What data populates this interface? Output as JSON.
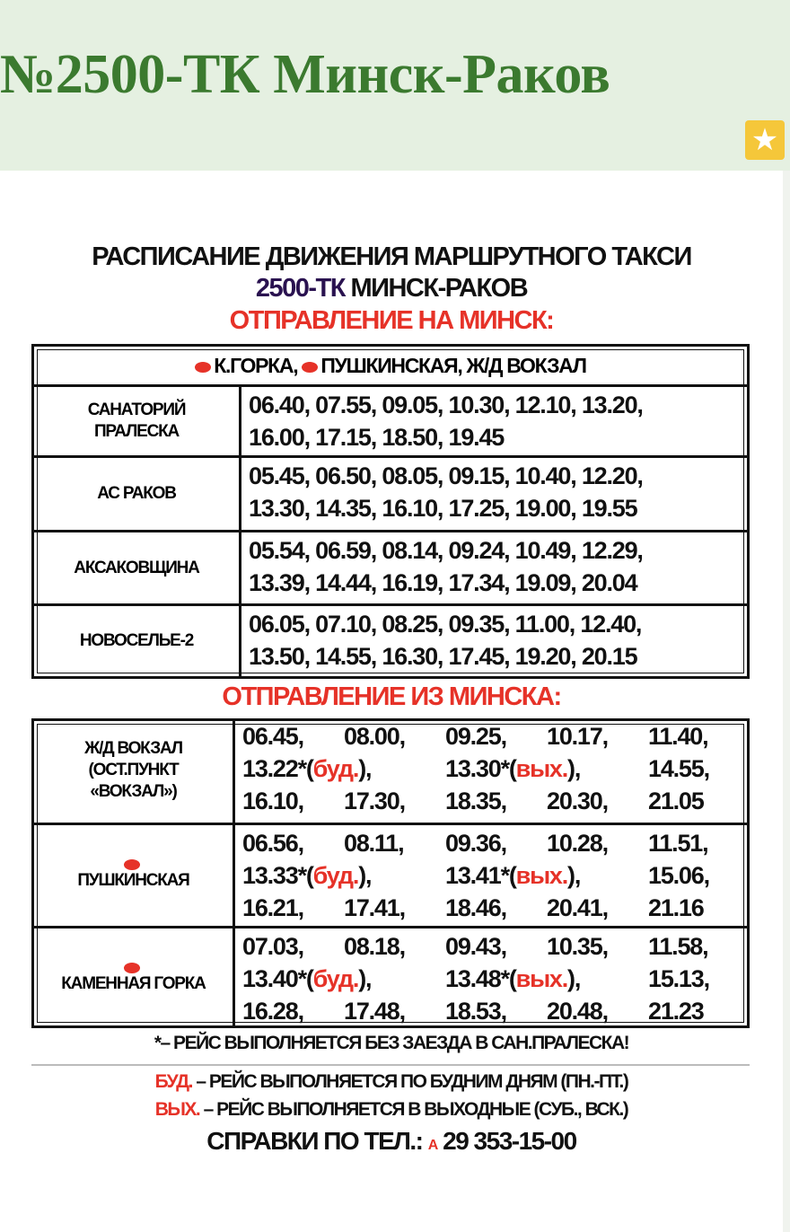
{
  "page": {
    "title": "№2500-ТК Минск-Раков",
    "star_icon": "star-icon"
  },
  "colors": {
    "title_green": "#3b7a2f",
    "header_bg": "#e5f0e1",
    "accent_red": "#e63228",
    "route_purple": "#2a1250"
  },
  "schedule": {
    "heading": "РАСПИСАНИЕ ДВИЖЕНИЯ МАРШРУТНОГО ТАКСИ",
    "route_number": "2500-ТК",
    "route_name": "МИНСК-РАКОВ",
    "to_minsk": {
      "title": "ОТПРАВЛЕНИЕ НА МИНСК:",
      "via": [
        "К.ГОРКА,",
        "ПУШКИНСКАЯ, Ж/Д ВОКЗАЛ"
      ],
      "rows": [
        {
          "stop": [
            "САНАТОРИЙ",
            "ПРАЛЕСКА"
          ],
          "lines": [
            "06.40, 07.55, 09.05, 10.30, 12.10, 13.20,",
            "16.00, 17.15, 18.50, 19.45"
          ]
        },
        {
          "stop": [
            "АС РАКОВ"
          ],
          "lines": [
            "05.45, 06.50, 08.05, 09.15, 10.40, 12.20,",
            "13.30, 14.35, 16.10, 17.25, 19.00, 19.55"
          ]
        },
        {
          "stop": [
            "АКСАКОВЩИНА"
          ],
          "lines": [
            "05.54, 06.59, 08.14, 09.24, 10.49, 12.29,",
            "13.39, 14.44, 16.19, 17.34, 19.09, 20.04"
          ]
        },
        {
          "stop": [
            "НОВОСЕЛЬЕ-2"
          ],
          "lines": [
            "06.05, 07.10, 08.25, 09.35, 11.00, 12.40,",
            "13.50, 14.55, 16.30, 17.45, 19.20, 20.15"
          ]
        }
      ]
    },
    "from_minsk": {
      "title": "ОТПРАВЛЕНИЕ ИЗ МИНСКА:",
      "rows": [
        {
          "stop": [
            "Ж/Д ВОКЗАЛ",
            "(ОСТ.ПУНКТ",
            "«ВОКЗАЛ»)"
          ],
          "metro": false,
          "lines": [
            [
              {
                "t": "06.45,"
              },
              {
                "t": "08.00,"
              },
              {
                "t": "09.25,"
              },
              {
                "t": "10.17,"
              },
              {
                "t": "11.40,"
              }
            ],
            [
              {
                "t": "13.22*(",
                "n": "буд.",
                "e": "),"
              },
              {
                "t": "13.30*(",
                "n": "вых.",
                "e": "),"
              },
              {
                "t": "14.55,"
              }
            ],
            [
              {
                "t": "16.10,"
              },
              {
                "t": "17.30,"
              },
              {
                "t": "18.35,"
              },
              {
                "t": "20.30,"
              },
              {
                "t": "21.05"
              }
            ]
          ]
        },
        {
          "stop": [
            "ПУШКИНСКАЯ"
          ],
          "metro": true,
          "lines": [
            [
              {
                "t": "06.56,"
              },
              {
                "t": "08.11,"
              },
              {
                "t": "09.36,"
              },
              {
                "t": "10.28,"
              },
              {
                "t": "11.51,"
              }
            ],
            [
              {
                "t": "13.33*(",
                "n": "буд.",
                "e": "),"
              },
              {
                "t": "13.41*(",
                "n": "вых.",
                "e": "),"
              },
              {
                "t": "15.06,"
              }
            ],
            [
              {
                "t": "16.21,"
              },
              {
                "t": "17.41,"
              },
              {
                "t": "18.46,"
              },
              {
                "t": "20.41,"
              },
              {
                "t": "21.16"
              }
            ]
          ]
        },
        {
          "stop": [
            "КАМЕННАЯ ГОРКА"
          ],
          "metro": true,
          "lines": [
            [
              {
                "t": "07.03,"
              },
              {
                "t": "08.18,"
              },
              {
                "t": "09.43,"
              },
              {
                "t": "10.35,"
              },
              {
                "t": "11.58,"
              }
            ],
            [
              {
                "t": "13.40*(",
                "n": "буд.",
                "e": "),"
              },
              {
                "t": "13.48*(",
                "n": "вых.",
                "e": "),"
              },
              {
                "t": "15.13,"
              }
            ],
            [
              {
                "t": "16.28,"
              },
              {
                "t": "17.48,"
              },
              {
                "t": "18.53,"
              },
              {
                "t": "20.48,"
              },
              {
                "t": "21.23"
              }
            ]
          ]
        }
      ]
    },
    "footnote": "*– РЕЙС ВЫПОЛНЯЕТСЯ БЕЗ ЗАЕЗДА В САН.ПРАЛЕСКА!",
    "legend": [
      {
        "key": "БУД.",
        "text": " – РЕЙС ВЫПОЛНЯЕТСЯ ПО БУДНИМ ДНЯМ (ПН.-ПТ.)"
      },
      {
        "key": "ВЫХ.",
        "text": " – РЕЙС ВЫПОЛНЯЕТСЯ В ВЫХОДНЫЕ (СУБ., ВСК.)"
      }
    ],
    "contact_label": "СПРАВКИ ПО ТЕЛ.:",
    "phone": "29 353-15-00"
  }
}
